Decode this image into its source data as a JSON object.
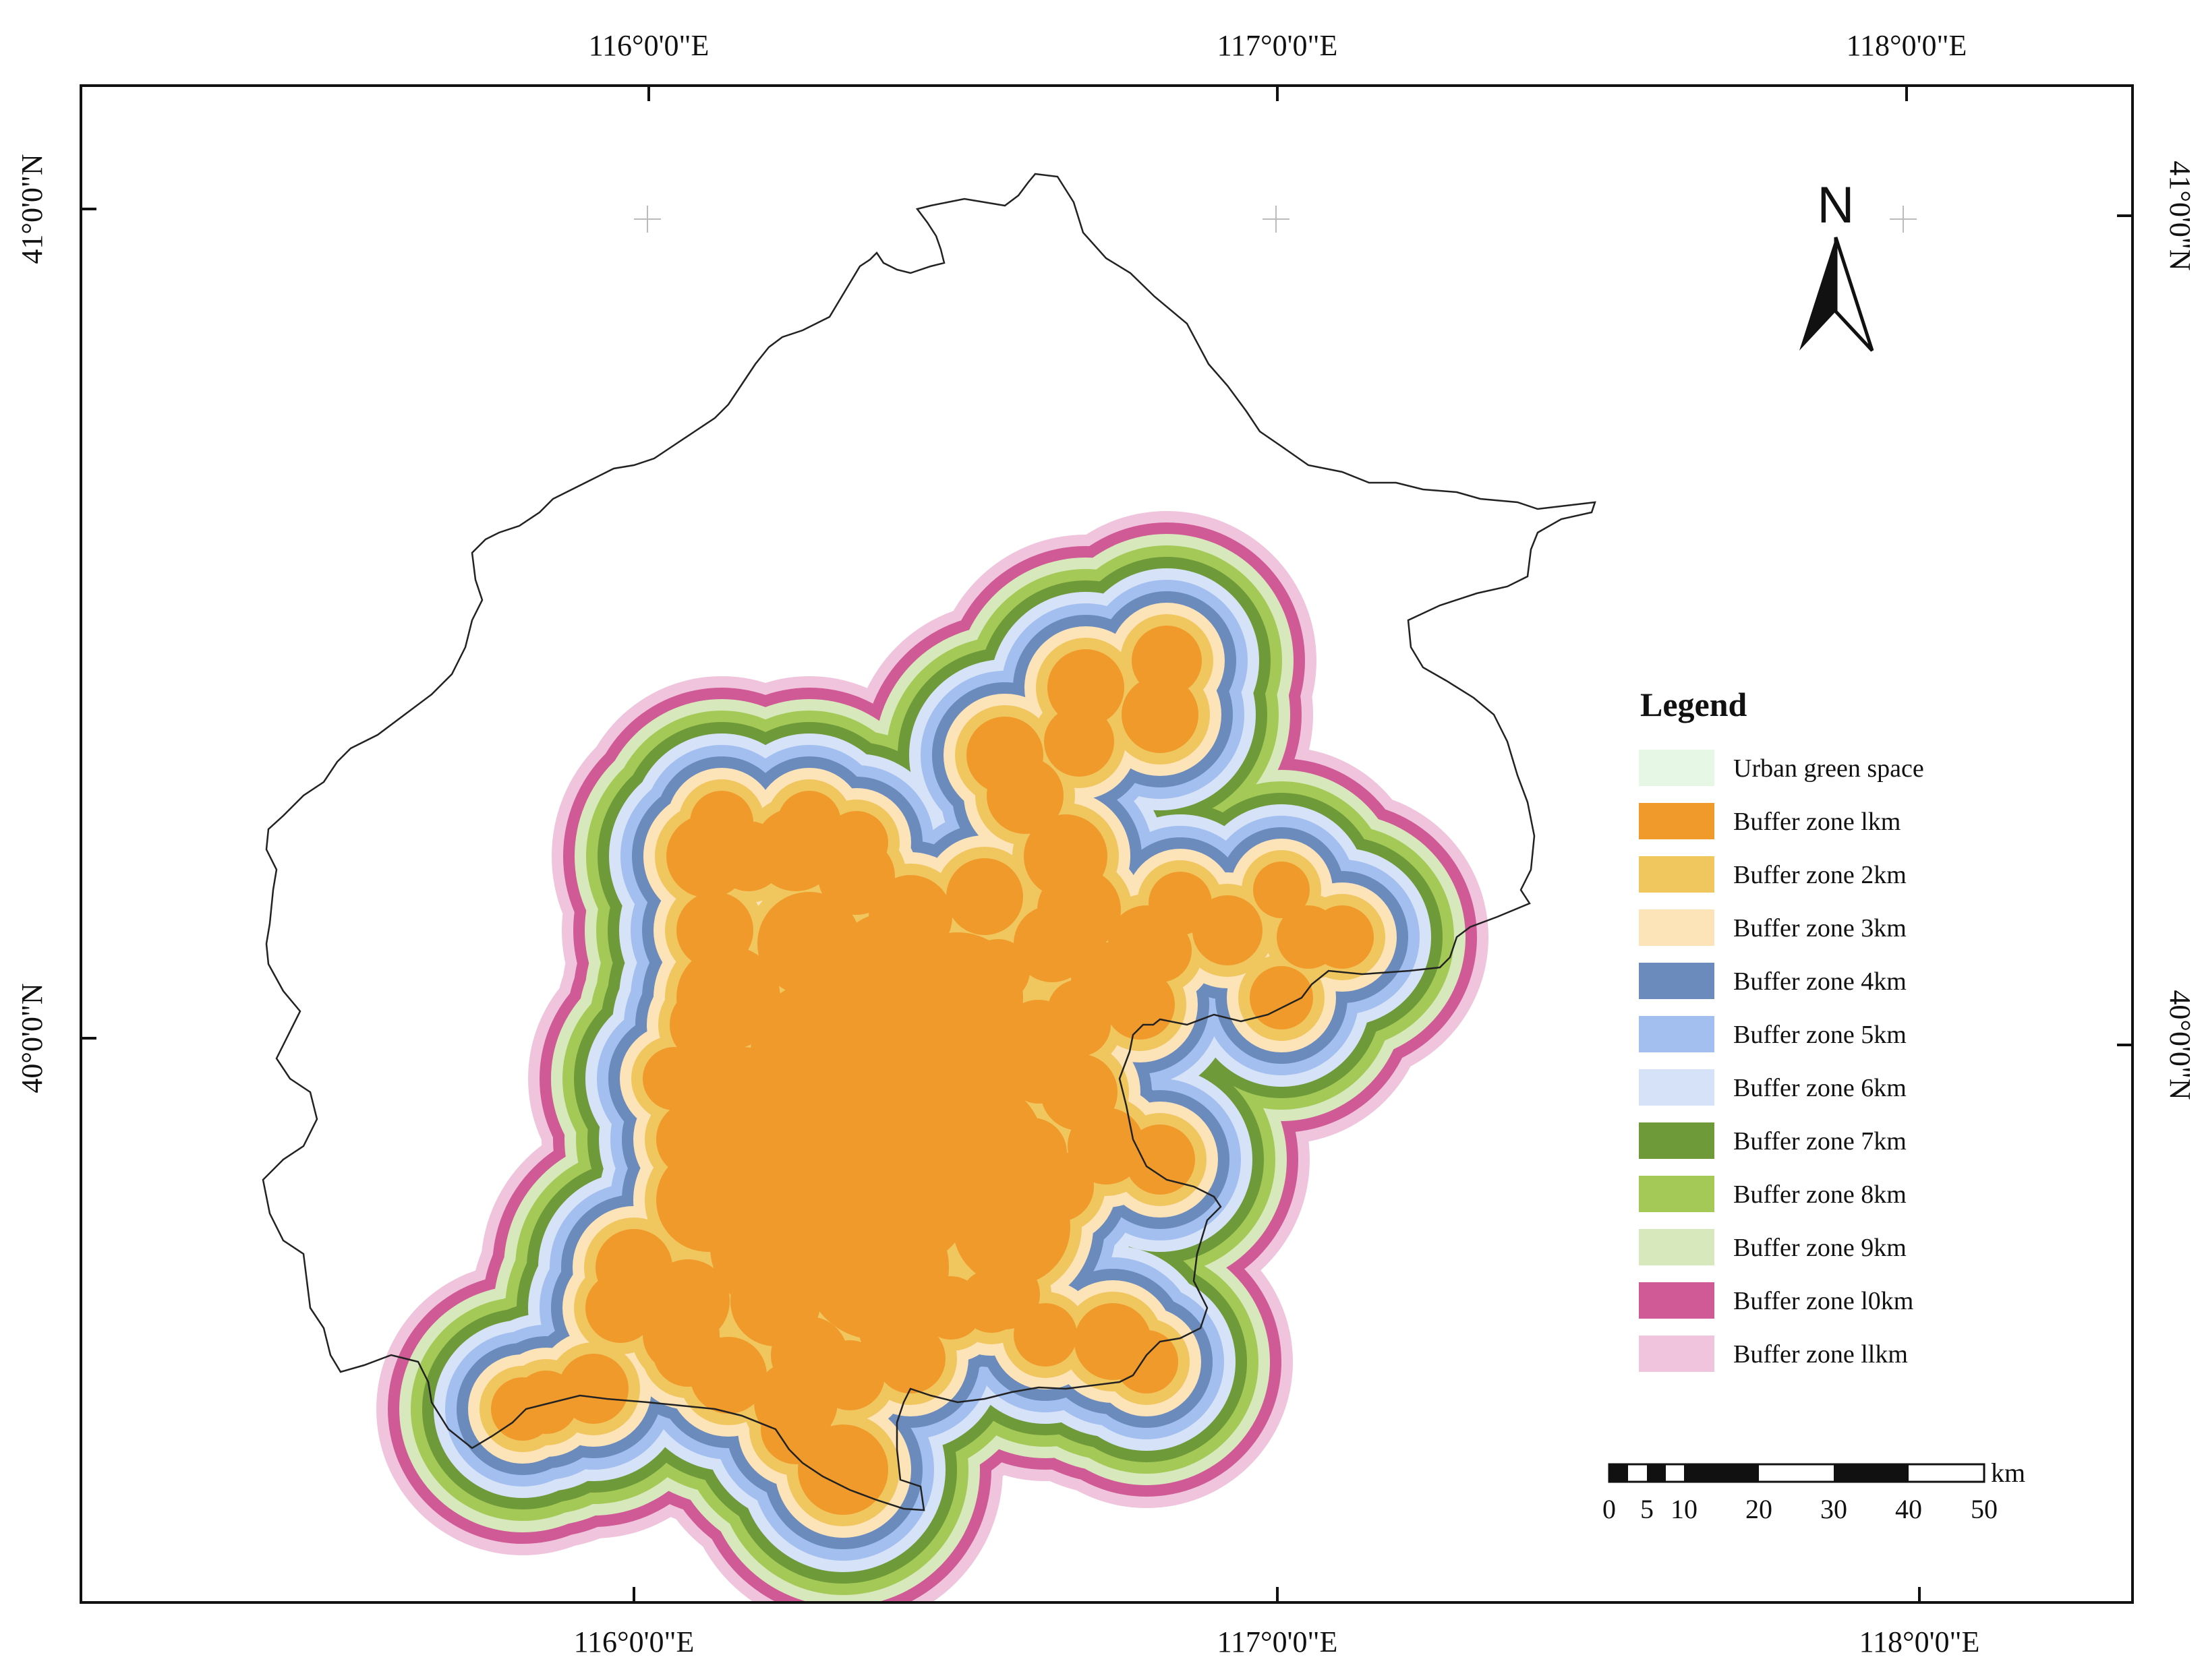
{
  "map": {
    "region_type": "Beijing municipal boundary with green-space buffer zones",
    "lon_ticks_top": [
      "116°0'0\"E",
      "117°0'0\"E",
      "118°0'0\"E"
    ],
    "lon_ticks_bottom": [
      "116°0'0\"E",
      "117°0'0\"E",
      "118°0'0\"E"
    ],
    "lat_ticks_left": [
      "41°0'0\"N",
      "40°0'0\"N"
    ],
    "lat_ticks_right": [
      "41°0'0\"N",
      "40°0'0\"N"
    ]
  },
  "north_arrow": {
    "label": "N"
  },
  "legend": {
    "title": "Legend",
    "items": [
      {
        "label": "Urban green space",
        "color": "#e6f7e6"
      },
      {
        "label": "Buffer zone lkm",
        "color": "#f09a2b"
      },
      {
        "label": "Buffer zone 2km",
        "color": "#f0c65e"
      },
      {
        "label": "Buffer zone 3km",
        "color": "#fde3b8"
      },
      {
        "label": "Buffer zone 4km",
        "color": "#6b8bbd"
      },
      {
        "label": "Buffer zone 5km",
        "color": "#a3bff0"
      },
      {
        "label": "Buffer zone 6km",
        "color": "#d6e2f7"
      },
      {
        "label": "Buffer zone 7km",
        "color": "#6e9a3a"
      },
      {
        "label": "Buffer zone 8km",
        "color": "#a4c957"
      },
      {
        "label": "Buffer zone 9km",
        "color": "#d7e9bc"
      },
      {
        "label": "Buffer zone l0km",
        "color": "#cf5a95"
      },
      {
        "label": "Buffer zone llkm",
        "color": "#f0c4dc"
      }
    ]
  },
  "scale_bar": {
    "unit": "km",
    "labels": [
      "0",
      "5",
      "10",
      "20",
      "30",
      "40",
      "50"
    ]
  },
  "colors": {
    "frame": "#111111",
    "boundary": "#222222"
  }
}
